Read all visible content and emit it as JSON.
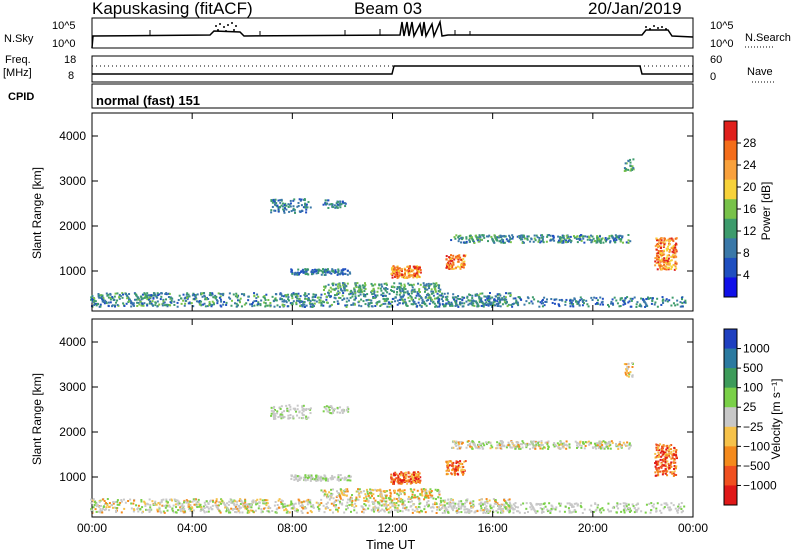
{
  "header": {
    "station": "Kapuskasing (fitACF)",
    "beam": "Beam 03",
    "date": "20/Jan/2019",
    "cpid_mode": "normal (fast) 151"
  },
  "left_labels": {
    "nsky": "N.Sky",
    "freq": "Freq.",
    "mhz": "[MHz]",
    "cpid": "CPID",
    "nsky_ticks": [
      "10^5",
      "10^0"
    ],
    "freq_ticks": [
      "18",
      "8"
    ]
  },
  "right_labels": {
    "nsearch": "N.Search",
    "nave": "Nave",
    "nsearch_ticks": [
      "10^5",
      "10^0"
    ],
    "nave_ticks": [
      "60",
      "0"
    ]
  },
  "chart_data": [
    {
      "type": "heatmap",
      "name": "power",
      "ylabel": "Slant Range [km]",
      "y_ticks": [
        "4000",
        "3000",
        "2000",
        "1000"
      ],
      "colorbar_label": "Power [dB]",
      "colorbar_ticks": [
        "28",
        "24",
        "20",
        "16",
        "12",
        "8",
        "4"
      ],
      "colors": [
        "#e0201c",
        "#f46d1a",
        "#f9a13c",
        "#f7d23a",
        "#78c24a",
        "#3d9b6c",
        "#3a78a8",
        "#1f4fc0",
        "#1010e8"
      ]
    },
    {
      "type": "heatmap",
      "name": "velocity",
      "ylabel": "Slant Range [km]",
      "y_ticks": [
        "4000",
        "3000",
        "2000",
        "1000"
      ],
      "colorbar_label": "Velocity [m s⁻¹]",
      "colorbar_ticks": [
        "1000",
        "500",
        "100",
        "25",
        "−25",
        "−100",
        "−500",
        "−1000"
      ],
      "colors": [
        "#1f40c0",
        "#2b7aa0",
        "#3d9b5a",
        "#7ad048",
        "#c8c8c8",
        "#f6c24a",
        "#f48a1c",
        "#f05020",
        "#e01818"
      ]
    }
  ],
  "x_axis": {
    "ticks": [
      "00:00",
      "04:00",
      "08:00",
      "12:00",
      "16:00",
      "20:00",
      "00:00"
    ],
    "label": "Time UT"
  },
  "colors": {
    "frame": "#000000",
    "axis_tick": "#000000"
  }
}
